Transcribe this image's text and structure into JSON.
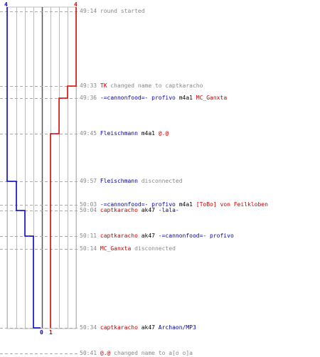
{
  "colors": {
    "team_a": "#0000cc",
    "team_b": "#dd0000",
    "grid": "#bbbbbb",
    "center_line": "#555555",
    "dash": "#aaaaaa",
    "muted": "#888888"
  },
  "score": {
    "team_a_start": "4",
    "team_b_start": "4",
    "team_a_end": "0",
    "team_b_end": "1"
  },
  "events": [
    {
      "time": "49:14",
      "parts": [
        {
          "text": "round started",
          "style": "gray"
        }
      ]
    },
    {
      "time": "49:33",
      "parts": [
        {
          "text": "TK",
          "style": "red"
        },
        {
          "text": " changed name to captkaracho",
          "style": "gray"
        }
      ]
    },
    {
      "time": "49:36",
      "parts": [
        {
          "text": "-=cannonfood=- profivo",
          "style": "blue"
        },
        {
          "text": " m4a1 ",
          "style": "black"
        },
        {
          "text": "MC_Ganxta",
          "style": "red"
        }
      ]
    },
    {
      "time": "49:45",
      "parts": [
        {
          "text": "Fleischmann",
          "style": "blue"
        },
        {
          "text": " m4a1 ",
          "style": "black"
        },
        {
          "text": "@.@",
          "style": "red"
        }
      ]
    },
    {
      "time": "49:57",
      "parts": [
        {
          "text": "Fleischmann",
          "style": "blue"
        },
        {
          "text": " disconnected",
          "style": "gray"
        }
      ]
    },
    {
      "time": "50:03",
      "parts": [
        {
          "text": "-=cannonfood=- profivo",
          "style": "blue"
        },
        {
          "text": " m4a1 ",
          "style": "black"
        },
        {
          "text": "[ToBo] von Feilkloben",
          "style": "red"
        }
      ]
    },
    {
      "time": "50:04",
      "parts": [
        {
          "text": "captkaracho",
          "style": "red"
        },
        {
          "text": " ak47 ",
          "style": "black"
        },
        {
          "text": "-lala-",
          "style": "blue"
        }
      ]
    },
    {
      "time": "50:11",
      "parts": [
        {
          "text": "captkaracho",
          "style": "red"
        },
        {
          "text": " ak47 ",
          "style": "black"
        },
        {
          "text": "-=cannonfood=- profivo",
          "style": "blue"
        }
      ]
    },
    {
      "time": "50:14",
      "parts": [
        {
          "text": "MC_Ganxta",
          "style": "red"
        },
        {
          "text": " disconnected",
          "style": "gray"
        }
      ]
    },
    {
      "time": "50:34",
      "parts": [
        {
          "text": "captkaracho",
          "style": "red"
        },
        {
          "text": " ak47 ",
          "style": "black"
        },
        {
          "text": "Archaon/MP3",
          "style": "blue"
        }
      ]
    },
    {
      "time": "50:41",
      "parts": [
        {
          "text": "@.@",
          "style": "red"
        },
        {
          "text": " changed name to a[o o]a",
          "style": "gray"
        }
      ]
    }
  ]
}
